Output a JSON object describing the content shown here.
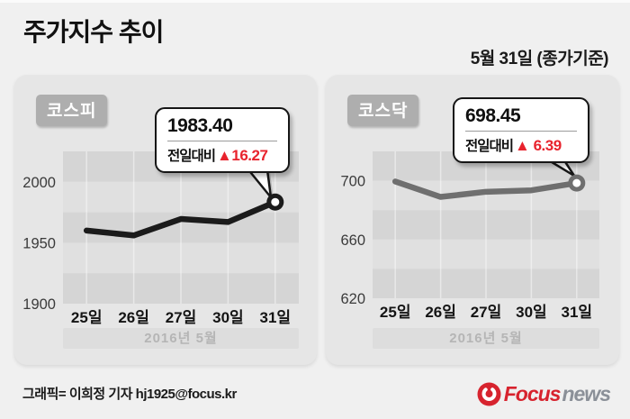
{
  "header": {
    "title": "주가지수 추이",
    "date_note": "5월 31일 (종가기준)"
  },
  "footer": {
    "credit": "그래픽= 이희정 기자 hj1925@focus.kr",
    "logo": {
      "icon": "focus-swirl-icon",
      "brand": "Focus",
      "suffix": "news"
    }
  },
  "colors": {
    "page_bg": "#f0f0f0",
    "panel_bg": "#e6e6e6",
    "band_dark": "#d5d5d5",
    "band_light": "#e0e0e0",
    "up_red": "#e8232d",
    "kospi_line": "#1b1b1b",
    "kosdaq_line": "#6f6f6f",
    "logo_red": "#d7232e",
    "logo_gray": "#8b9098"
  },
  "chart_data": [
    {
      "type": "line",
      "title": "코스피",
      "categories": [
        "25일",
        "26일",
        "27일",
        "30일",
        "31일"
      ],
      "values": [
        1960,
        1956,
        1969.5,
        1967,
        1983.4
      ],
      "ylim": [
        1900,
        2025
      ],
      "yticks": [
        2000,
        1950,
        1900
      ],
      "band_step": 25,
      "grid": "horizontal-bands-with-vertical-lines",
      "legend": "none",
      "xlabel": "2016년 5월",
      "line_color": "#1b1b1b",
      "callout": {
        "value": "1983.40",
        "prefix": "전일대비",
        "change": "▲16.27"
      }
    },
    {
      "type": "line",
      "title": "코스닥",
      "categories": [
        "25일",
        "26일",
        "27일",
        "30일",
        "31일"
      ],
      "values": [
        699.5,
        689,
        692.5,
        693.5,
        698.45
      ],
      "ylim": [
        620,
        720
      ],
      "yticks": [
        700,
        660,
        620
      ],
      "band_step": 20,
      "grid": "horizontal-bands-with-vertical-lines",
      "legend": "none",
      "xlabel": "2016년 5월",
      "line_color": "#6f6f6f",
      "callout": {
        "value": "698.45",
        "prefix": "전일대비",
        "change": "▲ 6.39"
      }
    }
  ]
}
